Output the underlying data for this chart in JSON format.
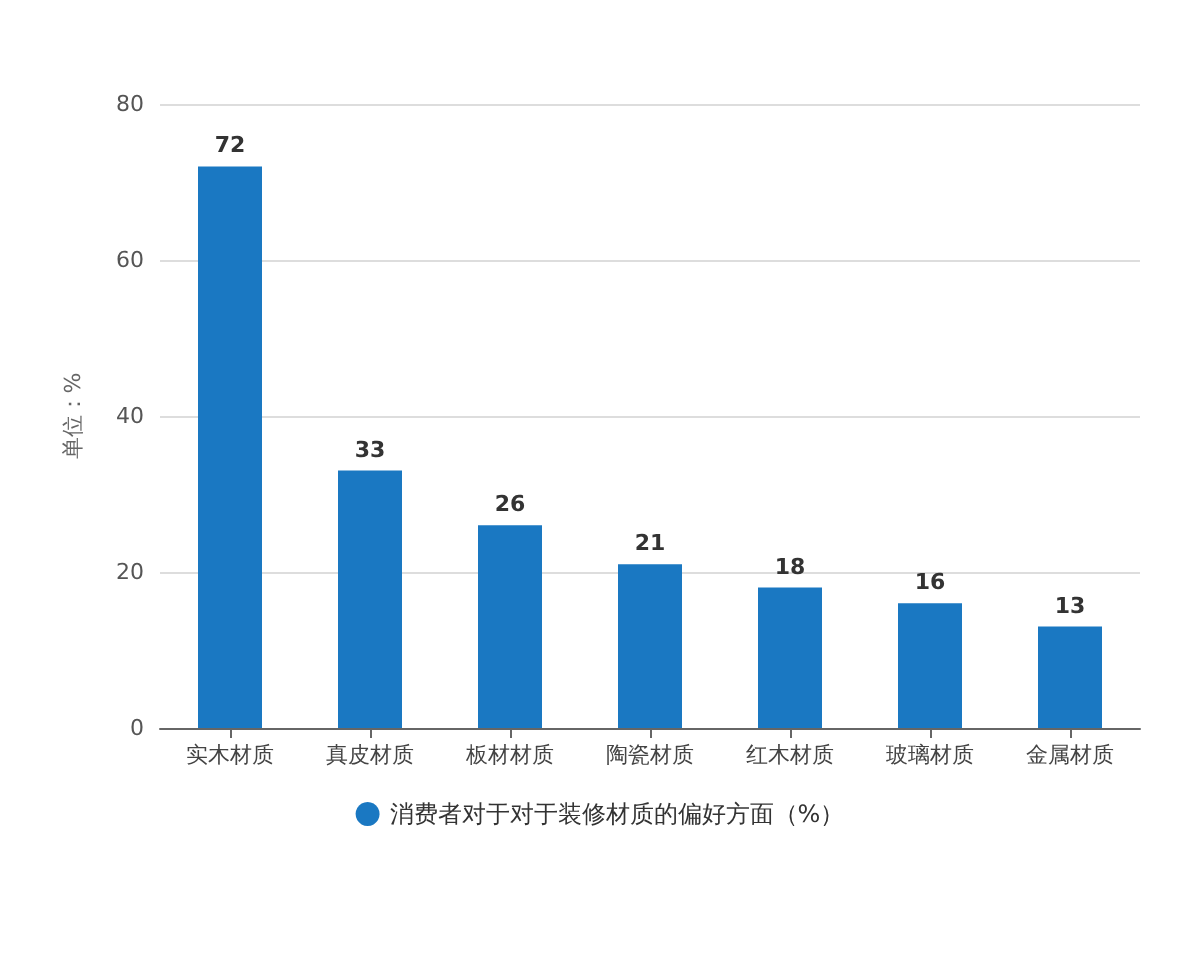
{
  "chart_data": {
    "type": "bar",
    "ylabel": "单位：%",
    "categories": [
      "实木材质",
      "真皮材质",
      "板材材质",
      "陶瓷材质",
      "红木材质",
      "玻璃材质",
      "金属材质"
    ],
    "series": [
      {
        "name": "消费者对于对于装修材质的偏好方面（%）",
        "color": "#1a78c2",
        "values": [
          72,
          33,
          26,
          21,
          18,
          16,
          13
        ]
      }
    ],
    "ylim": [
      0,
      80
    ],
    "yticks": [
      0,
      20,
      40,
      60,
      80
    ],
    "grid": "y",
    "legend": "bottom",
    "data_labels": true
  }
}
